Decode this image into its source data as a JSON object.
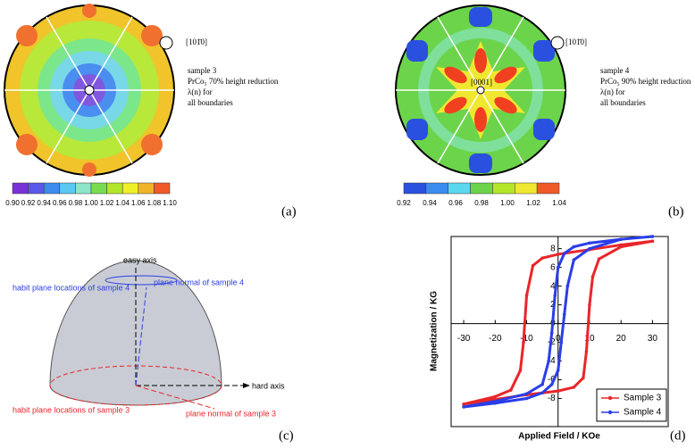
{
  "panel_a": {
    "pole_label": "[101̄0]",
    "sample": "sample 3",
    "material": "PrCo₅ 70% height reduction",
    "quantity": "λ(n) for",
    "scope": "all boundaries",
    "colorbar_labels": [
      "0.90",
      "0.92",
      "0.94",
      "0.96",
      "0.98",
      "1.00",
      "1.02",
      "1.04",
      "1.06",
      "1.08",
      "1.10"
    ],
    "panel_label": "(a)"
  },
  "panel_b": {
    "pole_label": "[101̄0]",
    "center_label": "[0001]",
    "sample": "sample 4",
    "material": "PrCo₅ 90% height reduction",
    "quantity": "λ(n) for",
    "scope": "all boundaries",
    "colorbar_labels": [
      "0.92",
      "0.94",
      "0.96",
      "0.98",
      "1.00",
      "1.02",
      "1.04"
    ],
    "panel_label": "(b)"
  },
  "panel_c": {
    "easy_axis": "easy axis",
    "normal_4": "plane normal of sample 4",
    "habit_4": "habit plane locations of sample 4",
    "hard_axis": "hard axis",
    "habit_3": "habit plane locations of sample 3",
    "normal_3": "plane normal of sample 3",
    "panel_label": "(c)"
  },
  "chart_data": {
    "type": "line",
    "x_label": "Applied Field / KOe",
    "y_label": "Magnetization / KG",
    "panel_label": "(d)",
    "xlim": [
      -34,
      35
    ],
    "ylim": [
      -11,
      9.3
    ],
    "xticks": [
      -30,
      -20,
      -10,
      0,
      10,
      20,
      30
    ],
    "yticks": [
      -8,
      -6,
      -4,
      -2,
      0,
      2,
      4,
      6,
      8
    ],
    "legend": "lower right",
    "series": [
      {
        "name": "Sample 3",
        "color": "#e8262a",
        "x": [
          30,
          20,
          10,
          0,
          -5,
          -8,
          -10,
          -11,
          -12,
          -15,
          -20,
          -30,
          -20,
          -10,
          0,
          5,
          8,
          9,
          10,
          11,
          13,
          20,
          30
        ],
        "values": [
          8.8,
          8.4,
          7.9,
          7.4,
          7.0,
          6.2,
          3,
          -2,
          -5,
          -7.1,
          -7.8,
          -8.6,
          -8.1,
          -7.6,
          -7.2,
          -6.8,
          -5.8,
          -3,
          2,
          5,
          6.9,
          8.2,
          8.8
        ]
      },
      {
        "name": "Sample 4",
        "color": "#2a3ee8",
        "x": [
          30,
          20,
          10,
          5,
          2,
          0,
          -1,
          -2,
          -3,
          -5,
          -10,
          -20,
          -30,
          -20,
          -10,
          -5,
          -2,
          0,
          1,
          2,
          3,
          5,
          10,
          20,
          30
        ],
        "values": [
          9.3,
          9.0,
          8.6,
          8.2,
          7.5,
          6.0,
          3,
          -1,
          -4,
          -6.5,
          -7.5,
          -8.3,
          -8.9,
          -8.5,
          -8.0,
          -7.4,
          -6.5,
          -5.0,
          -2,
          1,
          4,
          6.8,
          8.0,
          9.0,
          9.3
        ]
      }
    ]
  }
}
